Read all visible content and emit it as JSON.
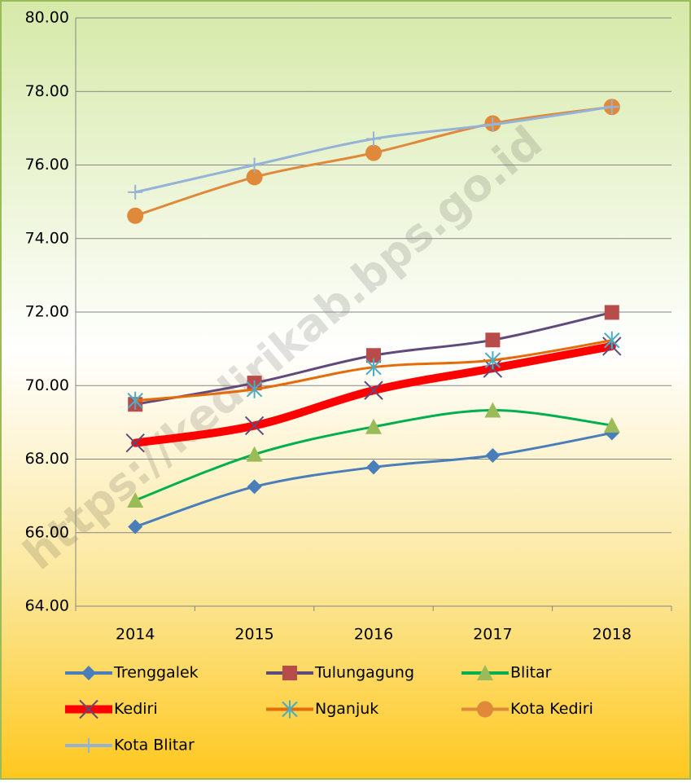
{
  "chart_data": {
    "type": "line",
    "categories": [
      "2014",
      "2015",
      "2016",
      "2017",
      "2018"
    ],
    "ylim": [
      64,
      80
    ],
    "yticks": [
      {
        "value": 64,
        "label": "64.00"
      },
      {
        "value": 66,
        "label": "66.00"
      },
      {
        "value": 68,
        "label": "68.00"
      },
      {
        "value": 70,
        "label": "70.00"
      },
      {
        "value": 72,
        "label": "72.00"
      },
      {
        "value": 74,
        "label": "74.00"
      },
      {
        "value": 76,
        "label": "76.00"
      },
      {
        "value": 78,
        "label": "78.00"
      },
      {
        "value": 80,
        "label": "80.00"
      }
    ],
    "grid": true,
    "legend": "bottom",
    "watermark": "https://kedirikab.bps.go.id",
    "series": [
      {
        "name": "Trenggalek",
        "color": "#4a7ebb",
        "marker": "diamond",
        "marker_color": "#4a7ebb",
        "line_width": 3,
        "values": [
          66.16,
          67.25,
          67.78,
          68.1,
          68.71
        ]
      },
      {
        "name": "Tulungagung",
        "color": "#604a7b",
        "marker": "square",
        "marker_color": "#b84c4a",
        "line_width": 3,
        "values": [
          69.49,
          70.07,
          70.82,
          71.24,
          71.99
        ]
      },
      {
        "name": "Blitar",
        "color": "#00b050",
        "marker": "triangle",
        "marker_color": "#9bbb59",
        "line_width": 3,
        "values": [
          66.88,
          68.13,
          68.88,
          69.33,
          68.92
        ]
      },
      {
        "name": "Kediri",
        "color": "#ff0000",
        "marker": "x",
        "marker_color": "#604a7b",
        "line_width": 10,
        "values": [
          68.44,
          68.91,
          69.87,
          70.47,
          71.07
        ]
      },
      {
        "name": "Nganjuk",
        "color": "#e46c0a",
        "marker": "asterisk",
        "marker_color": "#4bacc6",
        "line_width": 3,
        "values": [
          69.59,
          69.9,
          70.5,
          70.69,
          71.23
        ]
      },
      {
        "name": "Kota Kediri",
        "color": "#e0893a",
        "marker": "circle",
        "marker_color": "#e0893a",
        "line_width": 3,
        "values": [
          74.62,
          75.67,
          76.33,
          77.13,
          77.58
        ]
      },
      {
        "name": "Kota Blitar",
        "color": "#95b3d7",
        "marker": "plus",
        "marker_color": "#95b3d7",
        "line_width": 3,
        "values": [
          75.26,
          76.0,
          76.71,
          77.1,
          77.58
        ]
      }
    ]
  }
}
